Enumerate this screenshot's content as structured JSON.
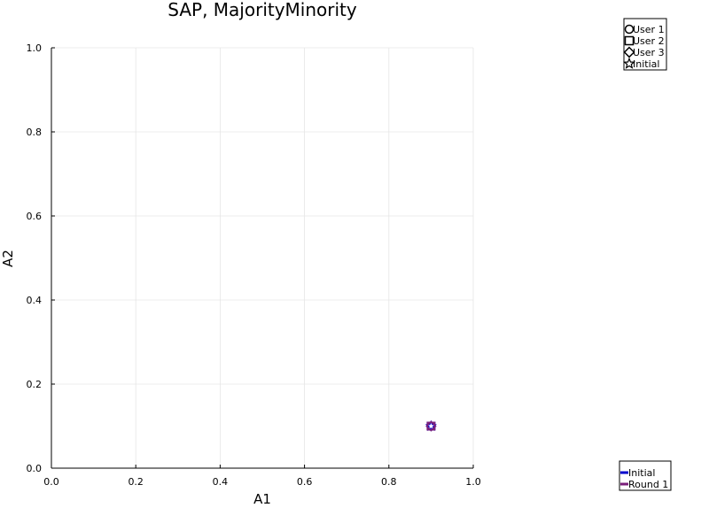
{
  "chart_data": {
    "type": "scatter",
    "title": "SAP, MajorityMinority",
    "xlabel": "A1",
    "ylabel": "A2",
    "xlim": [
      0.0,
      1.0
    ],
    "ylim": [
      0.0,
      1.0
    ],
    "x_ticks": [
      "0.0",
      "0.2",
      "0.4",
      "0.6",
      "0.8",
      "1.0"
    ],
    "y_ticks": [
      "0.0",
      "0.2",
      "0.4",
      "0.6",
      "0.8",
      "1.0"
    ],
    "grid": true,
    "marker_legend": {
      "placement": "top-right, outside plot",
      "entries": [
        {
          "label": "User 1",
          "marker": "circle"
        },
        {
          "label": "User 2",
          "marker": "square"
        },
        {
          "label": "User 3",
          "marker": "diamond"
        },
        {
          "label": "Initial",
          "marker": "star"
        }
      ]
    },
    "line_legend": {
      "placement": "bottom-right, outside plot",
      "entries": [
        {
          "label": "Initial",
          "color": "#0000cc"
        },
        {
          "label": "Round 1",
          "color": "#7a1f7a"
        }
      ]
    },
    "series": [
      {
        "marker": "circle",
        "color": "#0000cc",
        "x": [
          0.9
        ],
        "y": [
          0.1
        ]
      },
      {
        "marker": "square",
        "color": "#0000cc",
        "x": [
          0.9
        ],
        "y": [
          0.1
        ]
      },
      {
        "marker": "diamond",
        "color": "#0000cc",
        "x": [
          0.9
        ],
        "y": [
          0.1
        ]
      },
      {
        "marker": "star",
        "color": "#0000cc",
        "x": [
          0.9
        ],
        "y": [
          0.1
        ]
      },
      {
        "marker": "circle",
        "color": "#7a1f7a",
        "x": [
          0.9
        ],
        "y": [
          0.1
        ]
      },
      {
        "marker": "square",
        "color": "#7a1f7a",
        "x": [
          0.9
        ],
        "y": [
          0.1
        ]
      },
      {
        "marker": "diamond",
        "color": "#7a1f7a",
        "x": [
          0.9
        ],
        "y": [
          0.1
        ]
      }
    ]
  }
}
